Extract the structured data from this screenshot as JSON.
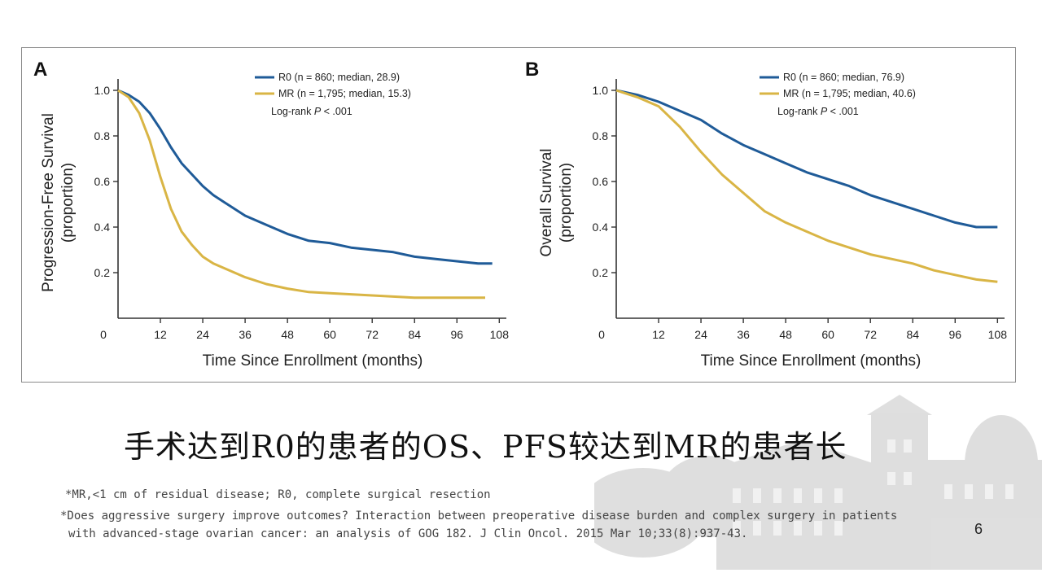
{
  "colors": {
    "R0": "#1f5b98",
    "MR": "#d9b545"
  },
  "chart_data": [
    {
      "type": "line",
      "panel_label": "A",
      "title": "",
      "xlabel": "Time Since Enrollment (months)",
      "ylabel": "Progression-Free Survival",
      "ylabel_sub": "(proportion)",
      "xlim": [
        0,
        110
      ],
      "ylim": [
        0,
        1.05
      ],
      "x_ticks": [
        0,
        12,
        24,
        36,
        48,
        60,
        72,
        84,
        96,
        108
      ],
      "y_ticks": [
        0.2,
        0.4,
        0.6,
        0.8,
        1.0
      ],
      "x_tick_labels": [
        "0",
        "12",
        "24",
        "36",
        "48",
        "60",
        "72",
        "84",
        "96",
        "108"
      ],
      "y_tick_labels": [
        "0.2",
        "0.4",
        "0.6",
        "0.8",
        "1.0"
      ],
      "legend": {
        "position": "top-right",
        "entries": [
          "R0 (n = 860; median, 28.9)",
          "MR (n = 1,795; median, 15.3)"
        ],
        "note_prefix": "Log-rank ",
        "note_italic": "P",
        "note_suffix": " < .001"
      },
      "series": [
        {
          "name": "R0 (n = 860; median, 28.9)",
          "color_key": "R0",
          "x": [
            0,
            3,
            6,
            9,
            12,
            15,
            18,
            21,
            24,
            27,
            30,
            33,
            36,
            42,
            48,
            54,
            60,
            66,
            72,
            78,
            84,
            90,
            96,
            102,
            106
          ],
          "y": [
            1.0,
            0.98,
            0.95,
            0.9,
            0.83,
            0.75,
            0.68,
            0.63,
            0.58,
            0.54,
            0.51,
            0.48,
            0.45,
            0.41,
            0.37,
            0.34,
            0.33,
            0.31,
            0.3,
            0.29,
            0.27,
            0.26,
            0.25,
            0.24,
            0.24
          ]
        },
        {
          "name": "MR (n = 1,795; median, 15.3)",
          "color_key": "MR",
          "x": [
            0,
            3,
            6,
            9,
            12,
            15,
            18,
            21,
            24,
            27,
            30,
            36,
            42,
            48,
            54,
            60,
            72,
            84,
            96,
            104
          ],
          "y": [
            1.0,
            0.97,
            0.9,
            0.78,
            0.62,
            0.48,
            0.38,
            0.32,
            0.27,
            0.24,
            0.22,
            0.18,
            0.15,
            0.13,
            0.115,
            0.11,
            0.1,
            0.09,
            0.09,
            0.09
          ]
        }
      ]
    },
    {
      "type": "line",
      "panel_label": "B",
      "title": "",
      "xlabel": "Time Since Enrollment (months)",
      "ylabel": "Overall Survival",
      "ylabel_sub": "(proportion)",
      "xlim": [
        0,
        110
      ],
      "ylim": [
        0,
        1.05
      ],
      "x_ticks": [
        0,
        12,
        24,
        36,
        48,
        60,
        72,
        84,
        96,
        108
      ],
      "y_ticks": [
        0.2,
        0.4,
        0.6,
        0.8,
        1.0
      ],
      "x_tick_labels": [
        "0",
        "12",
        "24",
        "36",
        "48",
        "60",
        "72",
        "84",
        "96",
        "108"
      ],
      "y_tick_labels": [
        "0.2",
        "0.4",
        "0.6",
        "0.8",
        "1.0"
      ],
      "legend": {
        "position": "top-right",
        "entries": [
          "R0 (n = 860; median, 76.9)",
          "MR (n = 1,795; median, 40.6)"
        ],
        "note_prefix": "Log-rank ",
        "note_italic": "P",
        "note_suffix": " < .001"
      },
      "series": [
        {
          "name": "R0 (n = 860; median, 76.9)",
          "color_key": "R0",
          "x": [
            0,
            6,
            12,
            18,
            24,
            30,
            36,
            42,
            48,
            54,
            60,
            66,
            72,
            78,
            84,
            90,
            96,
            102,
            108
          ],
          "y": [
            1.0,
            0.98,
            0.95,
            0.91,
            0.87,
            0.81,
            0.76,
            0.72,
            0.68,
            0.64,
            0.61,
            0.58,
            0.54,
            0.51,
            0.48,
            0.45,
            0.42,
            0.4,
            0.4
          ]
        },
        {
          "name": "MR (n = 1,795; median, 40.6)",
          "color_key": "MR",
          "x": [
            0,
            6,
            12,
            18,
            24,
            30,
            36,
            42,
            48,
            54,
            60,
            66,
            72,
            78,
            84,
            90,
            96,
            102,
            108
          ],
          "y": [
            1.0,
            0.97,
            0.93,
            0.84,
            0.73,
            0.63,
            0.55,
            0.47,
            0.42,
            0.38,
            0.34,
            0.31,
            0.28,
            0.26,
            0.24,
            0.21,
            0.19,
            0.17,
            0.16
          ]
        }
      ]
    }
  ],
  "slide": {
    "conclusion": "手术达到R0的患者的OS、PFS较达到MR的患者长",
    "footnote_1": "*MR,<1 cm of residual disease; R0, complete surgical resection",
    "footnote_2": "*Does aggressive surgery improve outcomes? Interaction between preoperative disease burden and complex surgery in patients",
    "footnote_3": "with advanced-stage ovarian cancer: an analysis of GOG 182. J Clin Oncol. 2015 Mar 10;33(8):937-43.",
    "page_number": "6"
  }
}
